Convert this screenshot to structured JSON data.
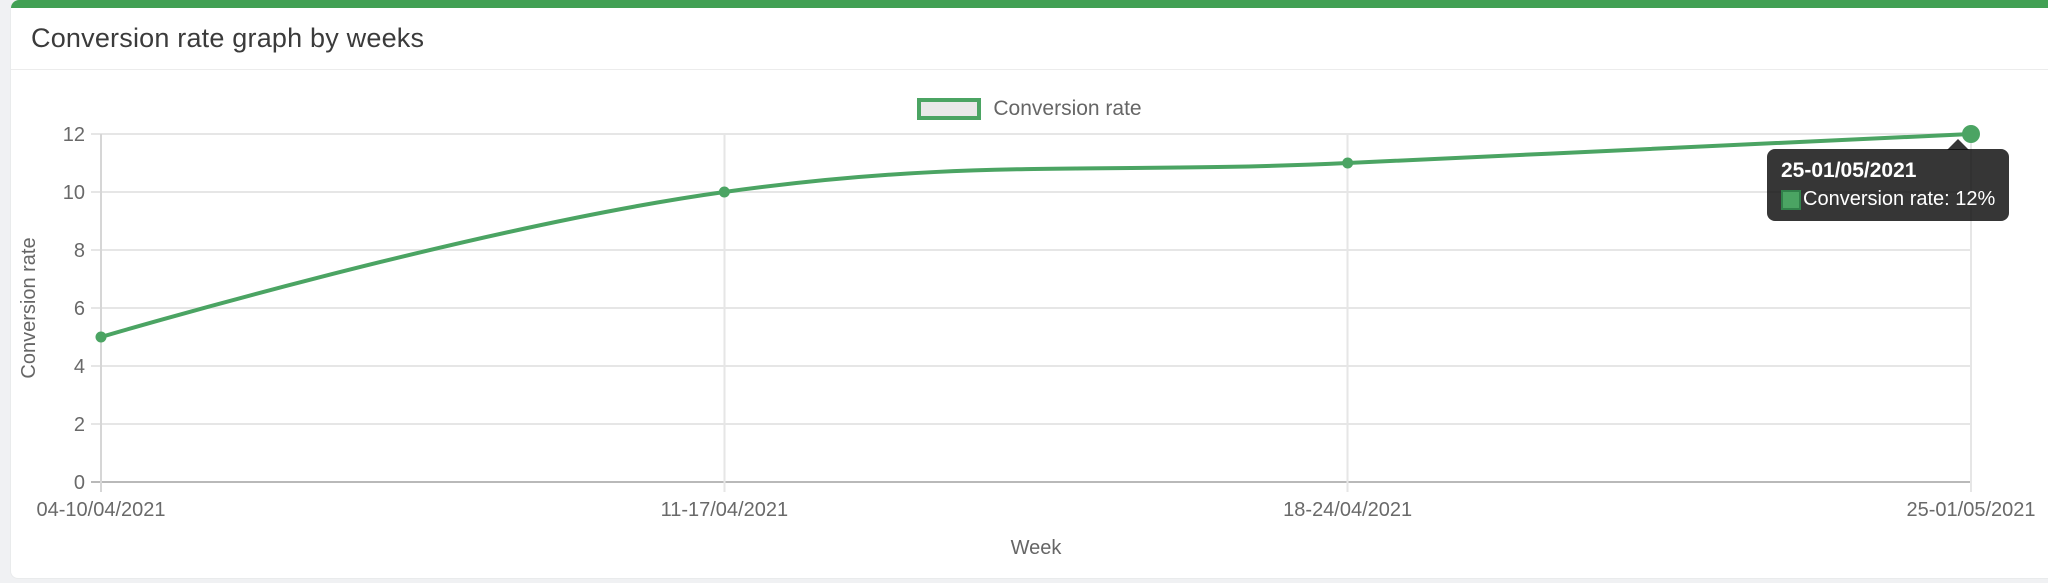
{
  "page": {
    "title": "Conversion rate graph by weeks"
  },
  "legend": {
    "label": "Conversion rate"
  },
  "tooltip": {
    "title": "25-01/05/2021",
    "text": "Conversion rate: 12%"
  },
  "chart_data": {
    "type": "line",
    "title": "Conversion rate graph by weeks",
    "xlabel": "Week",
    "ylabel": "Conversion rate",
    "categories": [
      "04-10/04/2021",
      "11-17/04/2021",
      "18-24/04/2021",
      "25-01/05/2021"
    ],
    "series": [
      {
        "name": "Conversion rate",
        "values": [
          5,
          10,
          11,
          12
        ]
      }
    ],
    "unit": "%",
    "ylim": [
      0,
      12
    ],
    "yticks": [
      0,
      2,
      4,
      6,
      8,
      10,
      12
    ],
    "grid": true,
    "legend_position": "top",
    "active_point_index": 3
  },
  "colors": {
    "top_bar_green": "#42a054",
    "line_green": "#4ba463",
    "swatch_border_green": "#31814a",
    "grid_line": "#e6e6e6",
    "zero_line": "#b9b9b9",
    "axis_line": "#d6d6d6",
    "tick_text": "#696969",
    "axis_title_text": "#666666"
  }
}
